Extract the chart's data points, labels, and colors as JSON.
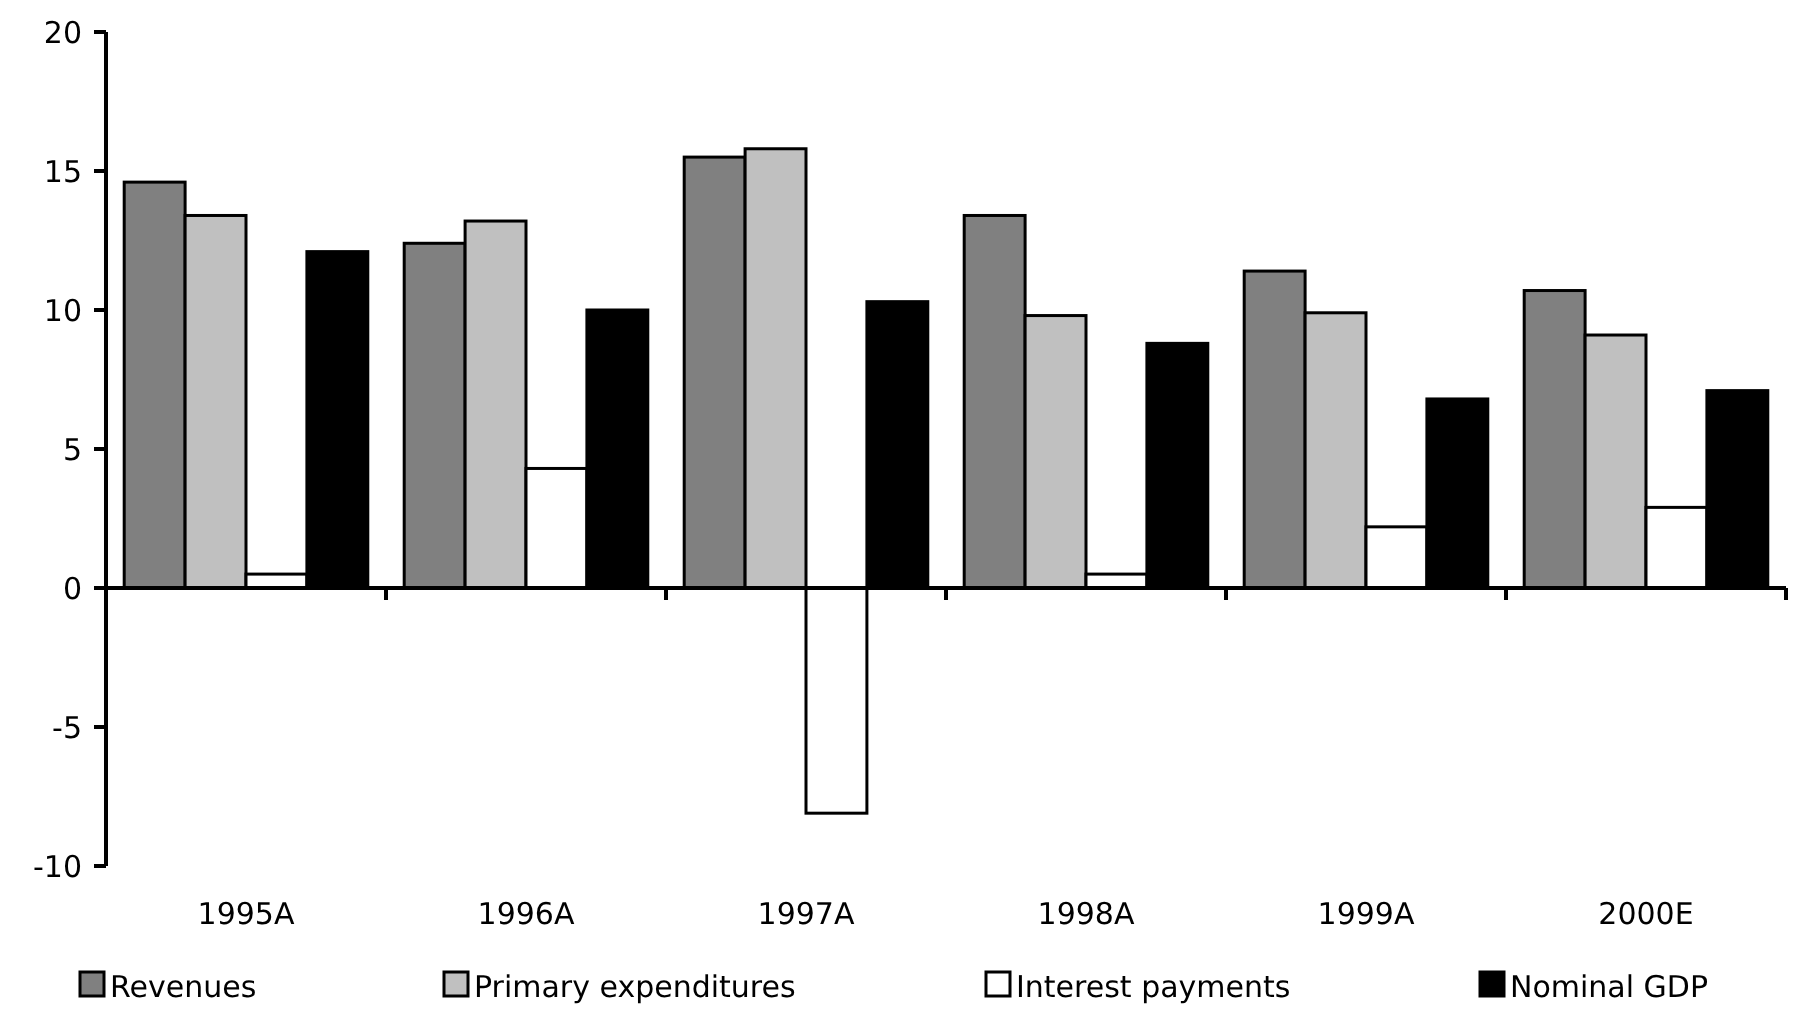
{
  "chart_data": {
    "type": "bar",
    "categories": [
      "1995A",
      "1996A",
      "1997A",
      "1998A",
      "1999A",
      "2000E"
    ],
    "series": [
      {
        "name": "Revenues",
        "color": "#808080",
        "values": [
          14.6,
          12.4,
          15.5,
          13.4,
          11.4,
          10.7
        ]
      },
      {
        "name": "Primary expenditures",
        "color": "#c0c0c0",
        "values": [
          13.4,
          13.2,
          15.8,
          9.8,
          9.9,
          9.1
        ]
      },
      {
        "name": "Interest payments",
        "color": "#ffffff",
        "values": [
          0.5,
          4.3,
          -8.1,
          0.5,
          2.2,
          2.9
        ]
      },
      {
        "name": "Nominal GDP",
        "color": "#000000",
        "values": [
          12.1,
          10.0,
          10.3,
          8.8,
          6.8,
          7.1
        ]
      }
    ],
    "ylim": [
      -10,
      20
    ],
    "yticks": [
      -10,
      -5,
      0,
      5,
      10,
      15,
      20
    ],
    "legend": "bottom"
  }
}
